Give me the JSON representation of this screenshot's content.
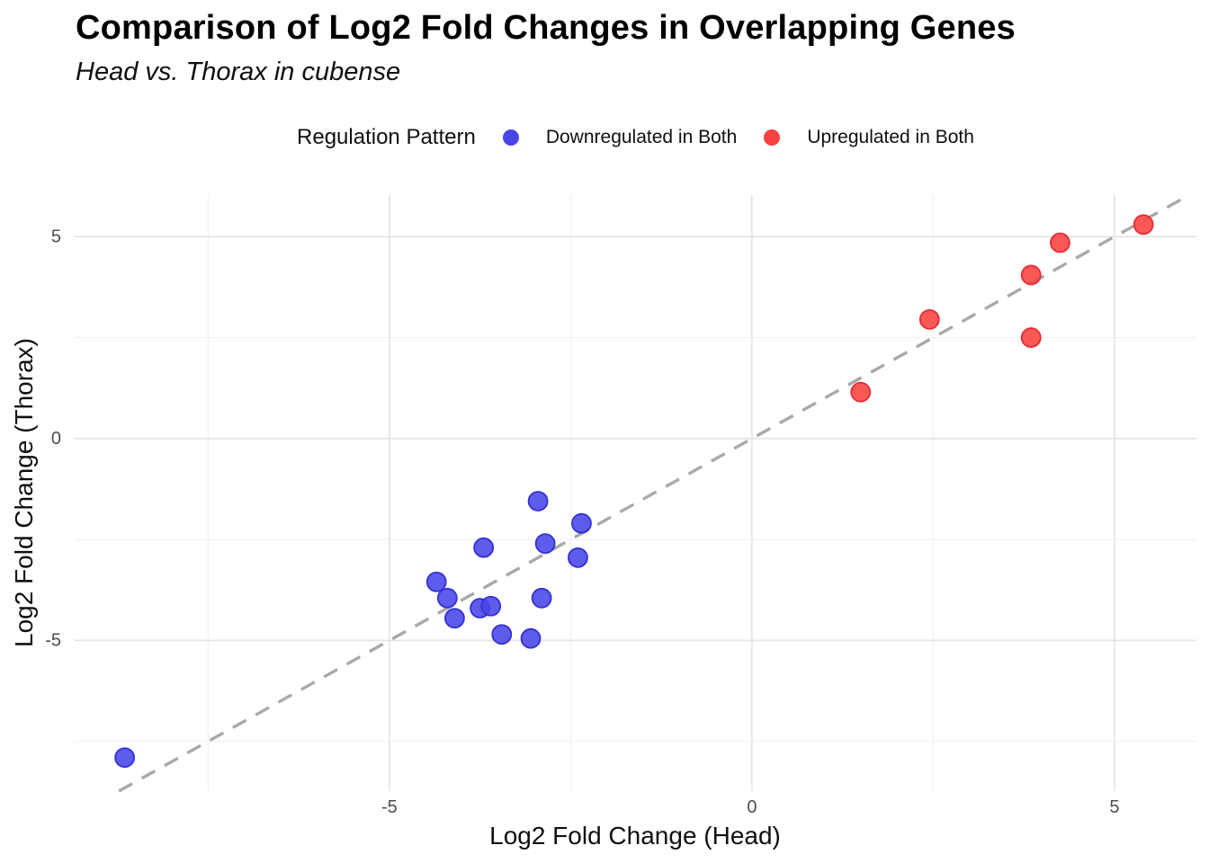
{
  "header": {
    "title": "Comparison of Log2 Fold Changes in Overlapping Genes",
    "subtitle": "Head vs. Thorax in cubense"
  },
  "legend": {
    "title": "Regulation Pattern",
    "items": [
      {
        "label": "Downregulated in Both",
        "color": "#4845e8",
        "stroke": "#3431d2"
      },
      {
        "label": "Upregulated in Both",
        "color": "#f8413e",
        "stroke": "#e32e3a"
      }
    ]
  },
  "chart_data": {
    "type": "scatter",
    "title": "Comparison of Log2 Fold Changes in Overlapping Genes",
    "subtitle": "Head vs. Thorax in cubense",
    "xlabel": "Log2 Fold Change (Head)",
    "ylabel": "Log2 Fold Change (Thorax)",
    "xlim": [
      -9.34,
      6.13
    ],
    "ylim": [
      -8.73,
      6.03
    ],
    "x_ticks": [
      -5,
      0,
      5
    ],
    "y_ticks": [
      -5,
      0,
      5
    ],
    "x_minor_ticks": [
      -7.5,
      -2.5,
      2.5
    ],
    "y_minor_ticks": [
      -7.5,
      -2.5,
      2.5
    ],
    "grid": "on",
    "legend_position": "top",
    "reference_line": {
      "kind": "identity y=x",
      "style": "dashed",
      "color": "#a9a9a9"
    },
    "series": [
      {
        "name": "Downregulated in Both",
        "color": "#4845e8",
        "stroke": "#3431d2",
        "points": [
          [
            -8.65,
            -7.9
          ],
          [
            -4.35,
            -3.55
          ],
          [
            -4.2,
            -3.95
          ],
          [
            -4.1,
            -4.45
          ],
          [
            -3.75,
            -4.2
          ],
          [
            -3.7,
            -2.7
          ],
          [
            -3.6,
            -4.15
          ],
          [
            -3.45,
            -4.85
          ],
          [
            -3.05,
            -4.95
          ],
          [
            -2.95,
            -1.55
          ],
          [
            -2.9,
            -3.95
          ],
          [
            -2.85,
            -2.6
          ],
          [
            -2.4,
            -2.95
          ],
          [
            -2.35,
            -2.1
          ]
        ]
      },
      {
        "name": "Upregulated in Both",
        "color": "#f8413e",
        "stroke": "#e32e3a",
        "points": [
          [
            1.5,
            1.15
          ],
          [
            2.45,
            2.95
          ],
          [
            3.85,
            4.05
          ],
          [
            3.85,
            2.5
          ],
          [
            4.25,
            4.85
          ],
          [
            5.4,
            5.3
          ]
        ]
      }
    ],
    "style": {
      "grid_major_color": "#e3e3e3",
      "grid_minor_color": "#efefef",
      "tick_label_color": "#4d4d4d",
      "point_radius": 10.5
    }
  }
}
